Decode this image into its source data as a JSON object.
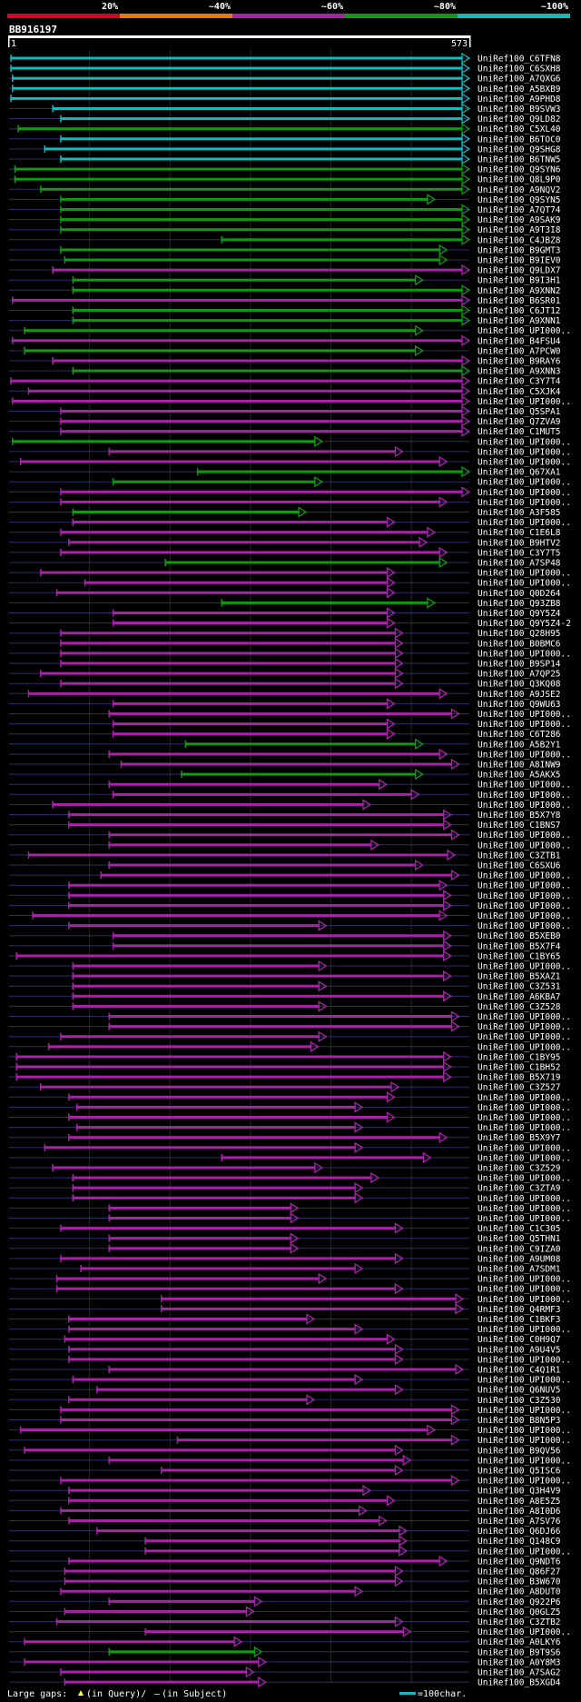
{
  "chart_data": {
    "type": "alignment-map",
    "title": "BB916197",
    "query_start": "1",
    "query_end": "573",
    "query_length": 573,
    "identity_scale": {
      "labels": [
        "20%",
        "~40%",
        "~60%",
        "~80%",
        "~100%"
      ],
      "colors": [
        "#dd0022",
        "#ee7700",
        "#aa22aa",
        "#119911",
        "#11bbbb"
      ]
    },
    "series": [
      {
        "name": "UniRef100_C6TFN8",
        "start": 3,
        "end": 573,
        "band": 4
      },
      {
        "name": "UniRef100_C6SXH8",
        "start": 3,
        "end": 573,
        "band": 4
      },
      {
        "name": "UniRef100_A7QXG6",
        "start": 5,
        "end": 573,
        "band": 4
      },
      {
        "name": "UniRef100_A5BXB9",
        "start": 5,
        "end": 573,
        "band": 4
      },
      {
        "name": "UniRef100_A9PHD8",
        "start": 3,
        "end": 573,
        "band": 4
      },
      {
        "name": "UniRef100_B9SVW3",
        "start": 55,
        "end": 573,
        "band": 4
      },
      {
        "name": "UniRef100_Q9LD82",
        "start": 65,
        "end": 573,
        "band": 4
      },
      {
        "name": "UniRef100_C5XL40",
        "start": 12,
        "end": 573,
        "band": 3
      },
      {
        "name": "UniRef100_B6TOC0",
        "start": 65,
        "end": 573,
        "band": 4
      },
      {
        "name": "UniRef100_Q9SHG8",
        "start": 45,
        "end": 573,
        "band": 4
      },
      {
        "name": "UniRef100_B6TNW5",
        "start": 65,
        "end": 573,
        "band": 4
      },
      {
        "name": "UniRef100_Q9SYN6",
        "start": 8,
        "end": 573,
        "band": 3
      },
      {
        "name": "UniRef100_Q8L9P0",
        "start": 8,
        "end": 573,
        "band": 3
      },
      {
        "name": "UniRef100_A9NQV2",
        "start": 40,
        "end": 573,
        "band": 3
      },
      {
        "name": "UniRef100_Q9SYN5",
        "start": 65,
        "end": 530,
        "band": 3
      },
      {
        "name": "UniRef100_A7QT74",
        "start": 65,
        "end": 573,
        "band": 3
      },
      {
        "name": "UniRef100_A9SAK9",
        "start": 65,
        "end": 573,
        "band": 3
      },
      {
        "name": "UniRef100_A9T3I8",
        "start": 65,
        "end": 573,
        "band": 3
      },
      {
        "name": "UniRef100_C4JBZ8",
        "start": 265,
        "end": 573,
        "band": 3
      },
      {
        "name": "UniRef100_B9GMT3",
        "start": 65,
        "end": 545,
        "band": 3
      },
      {
        "name": "UniRef100_B9IEV0",
        "start": 70,
        "end": 545,
        "band": 3
      },
      {
        "name": "UniRef100_Q9LDX7",
        "start": 55,
        "end": 573,
        "band": 2
      },
      {
        "name": "UniRef100_B9I3H1",
        "start": 80,
        "end": 515,
        "band": 3
      },
      {
        "name": "UniRef100_A9XNN2",
        "start": 80,
        "end": 573,
        "band": 3
      },
      {
        "name": "UniRef100_B6SR01",
        "start": 5,
        "end": 573,
        "band": 2
      },
      {
        "name": "UniRef100_C6JT12",
        "start": 80,
        "end": 573,
        "band": 3
      },
      {
        "name": "UniRef100_A9XNN1",
        "start": 80,
        "end": 573,
        "band": 3
      },
      {
        "name": "UniRef100_UPI000..",
        "start": 20,
        "end": 515,
        "band": 3
      },
      {
        "name": "UniRef100_B4FSU4",
        "start": 5,
        "end": 573,
        "band": 2
      },
      {
        "name": "UniRef100_A7PCW0",
        "start": 20,
        "end": 515,
        "band": 3
      },
      {
        "name": "UniRef100_B9RAY6",
        "start": 55,
        "end": 573,
        "band": 2
      },
      {
        "name": "UniRef100_A9XNN3",
        "start": 80,
        "end": 573,
        "band": 3
      },
      {
        "name": "UniRef100_C3Y7T4",
        "start": 3,
        "end": 573,
        "band": 2
      },
      {
        "name": "UniRef100_C5XJK4",
        "start": 25,
        "end": 573,
        "band": 2
      },
      {
        "name": "UniRef100_UPI000..",
        "start": 5,
        "end": 573,
        "band": 2
      },
      {
        "name": "UniRef100_Q5SPA1",
        "start": 65,
        "end": 573,
        "band": 2
      },
      {
        "name": "UniRef100_Q7ZVA9",
        "start": 65,
        "end": 573,
        "band": 2
      },
      {
        "name": "UniRef100_C1MUT5",
        "start": 65,
        "end": 573,
        "band": 2
      },
      {
        "name": "UniRef100_UPI000..",
        "start": 5,
        "end": 390,
        "band": 3
      },
      {
        "name": "UniRef100_UPI000..",
        "start": 125,
        "end": 490,
        "band": 2
      },
      {
        "name": "UniRef100_UPI000..",
        "start": 15,
        "end": 545,
        "band": 2
      },
      {
        "name": "UniRef100_Q67XA1",
        "start": 235,
        "end": 573,
        "band": 3
      },
      {
        "name": "UniRef100_UPI000..",
        "start": 130,
        "end": 390,
        "band": 3
      },
      {
        "name": "UniRef100_UPI000..",
        "start": 65,
        "end": 573,
        "band": 2
      },
      {
        "name": "UniRef100_UPI000..",
        "start": 65,
        "end": 545,
        "band": 2
      },
      {
        "name": "UniRef100_A3F585",
        "start": 80,
        "end": 370,
        "band": 3
      },
      {
        "name": "UniRef100_UPI000..",
        "start": 80,
        "end": 480,
        "band": 2
      },
      {
        "name": "UniRef100_C1E6L8",
        "start": 65,
        "end": 530,
        "band": 2
      },
      {
        "name": "UniRef100_B9HTV2",
        "start": 75,
        "end": 520,
        "band": 2
      },
      {
        "name": "UniRef100_C3Y7T5",
        "start": 65,
        "end": 545,
        "band": 2
      },
      {
        "name": "UniRef100_A7SP48",
        "start": 195,
        "end": 545,
        "band": 3
      },
      {
        "name": "UniRef100_UPI000..",
        "start": 40,
        "end": 480,
        "band": 2
      },
      {
        "name": "UniRef100_UPI000..",
        "start": 95,
        "end": 480,
        "band": 2
      },
      {
        "name": "UniRef100_Q0D264",
        "start": 60,
        "end": 480,
        "band": 2
      },
      {
        "name": "UniRef100_Q93ZB8",
        "start": 265,
        "end": 530,
        "band": 3
      },
      {
        "name": "UniRef100_Q9Y5Z4",
        "start": 130,
        "end": 480,
        "band": 2
      },
      {
        "name": "UniRef100_Q9Y5Z4-2",
        "start": 130,
        "end": 480,
        "band": 2
      },
      {
        "name": "UniRef100_Q28H95",
        "start": 65,
        "end": 490,
        "band": 2
      },
      {
        "name": "UniRef100_B0BMC6",
        "start": 65,
        "end": 490,
        "band": 2
      },
      {
        "name": "UniRef100_UPI000..",
        "start": 65,
        "end": 490,
        "band": 2
      },
      {
        "name": "UniRef100_B9SP14",
        "start": 65,
        "end": 490,
        "band": 2
      },
      {
        "name": "UniRef100_A7QP25",
        "start": 40,
        "end": 490,
        "band": 2
      },
      {
        "name": "UniRef100_Q3KQ08",
        "start": 65,
        "end": 490,
        "band": 2
      },
      {
        "name": "UniRef100_A9JSE2",
        "start": 25,
        "end": 545,
        "band": 2
      },
      {
        "name": "UniRef100_Q9WU63",
        "start": 130,
        "end": 480,
        "band": 2
      },
      {
        "name": "UniRef100_UPI000..",
        "start": 125,
        "end": 560,
        "band": 2
      },
      {
        "name": "UniRef100_UPI000..",
        "start": 130,
        "end": 480,
        "band": 2
      },
      {
        "name": "UniRef100_C6T286",
        "start": 130,
        "end": 480,
        "band": 2
      },
      {
        "name": "UniRef100_A5B2Y1",
        "start": 220,
        "end": 515,
        "band": 3
      },
      {
        "name": "UniRef100_UPI000..",
        "start": 125,
        "end": 545,
        "band": 2
      },
      {
        "name": "UniRef100_A8INW9",
        "start": 140,
        "end": 560,
        "band": 2
      },
      {
        "name": "UniRef100_A5AKX5",
        "start": 215,
        "end": 515,
        "band": 3
      },
      {
        "name": "UniRef100_UPI000..",
        "start": 125,
        "end": 470,
        "band": 2
      },
      {
        "name": "UniRef100_UPI000..",
        "start": 130,
        "end": 510,
        "band": 2
      },
      {
        "name": "UniRef100_UPI000..",
        "start": 55,
        "end": 450,
        "band": 2
      },
      {
        "name": "UniRef100_B5X7Y8",
        "start": 75,
        "end": 550,
        "band": 2
      },
      {
        "name": "UniRef100_C1BNS7",
        "start": 75,
        "end": 550,
        "band": 2
      },
      {
        "name": "UniRef100_UPI000..",
        "start": 125,
        "end": 560,
        "band": 2
      },
      {
        "name": "UniRef100_UPI000..",
        "start": 125,
        "end": 460,
        "band": 2
      },
      {
        "name": "UniRef100_C3ZTB1",
        "start": 25,
        "end": 555,
        "band": 2
      },
      {
        "name": "UniRef100_C6SXU6",
        "start": 125,
        "end": 515,
        "band": 2
      },
      {
        "name": "UniRef100_UPI000..",
        "start": 115,
        "end": 560,
        "band": 2
      },
      {
        "name": "UniRef100_UPI000..",
        "start": 75,
        "end": 545,
        "band": 2
      },
      {
        "name": "UniRef100_UPI000..",
        "start": 75,
        "end": 550,
        "band": 2
      },
      {
        "name": "UniRef100_UPI000..",
        "start": 75,
        "end": 550,
        "band": 2
      },
      {
        "name": "UniRef100_UPI000..",
        "start": 30,
        "end": 545,
        "band": 2
      },
      {
        "name": "UniRef100_UPI000..",
        "start": 75,
        "end": 395,
        "band": 2
      },
      {
        "name": "UniRef100_B5XEB0",
        "start": 130,
        "end": 550,
        "band": 2
      },
      {
        "name": "UniRef100_B5X7F4",
        "start": 130,
        "end": 550,
        "band": 2
      },
      {
        "name": "UniRef100_C1BY65",
        "start": 10,
        "end": 550,
        "band": 2
      },
      {
        "name": "UniRef100_UPI000..",
        "start": 80,
        "end": 395,
        "band": 2
      },
      {
        "name": "UniRef100_B5XAZ1",
        "start": 80,
        "end": 550,
        "band": 2
      },
      {
        "name": "UniRef100_C3Z531",
        "start": 80,
        "end": 395,
        "band": 2
      },
      {
        "name": "UniRef100_A6KBA7",
        "start": 80,
        "end": 550,
        "band": 2
      },
      {
        "name": "UniRef100_C3Z528",
        "start": 80,
        "end": 395,
        "band": 2
      },
      {
        "name": "UniRef100_UPI000..",
        "start": 125,
        "end": 560,
        "band": 2
      },
      {
        "name": "UniRef100_UPI000..",
        "start": 125,
        "end": 560,
        "band": 2
      },
      {
        "name": "UniRef100_UPI000..",
        "start": 65,
        "end": 395,
        "band": 2
      },
      {
        "name": "UniRef100_UPI000..",
        "start": 50,
        "end": 385,
        "band": 2
      },
      {
        "name": "UniRef100_C1BY95",
        "start": 10,
        "end": 550,
        "band": 2
      },
      {
        "name": "UniRef100_C1BH52",
        "start": 10,
        "end": 550,
        "band": 2
      },
      {
        "name": "UniRef100_B5X719",
        "start": 10,
        "end": 550,
        "band": 2
      },
      {
        "name": "UniRef100_C3Z527",
        "start": 40,
        "end": 485,
        "band": 2
      },
      {
        "name": "UniRef100_UPI000..",
        "start": 75,
        "end": 480,
        "band": 2
      },
      {
        "name": "UniRef100_UPI000..",
        "start": 85,
        "end": 440,
        "band": 2
      },
      {
        "name": "UniRef100_UPI000..",
        "start": 75,
        "end": 480,
        "band": 2
      },
      {
        "name": "UniRef100_UPI000..",
        "start": 85,
        "end": 440,
        "band": 2
      },
      {
        "name": "UniRef100_B5X9Y7",
        "start": 75,
        "end": 545,
        "band": 2
      },
      {
        "name": "UniRef100_UPI000..",
        "start": 45,
        "end": 440,
        "band": 2
      },
      {
        "name": "UniRef100_UPI000..",
        "start": 265,
        "end": 525,
        "band": 2
      },
      {
        "name": "UniRef100_C3Z529",
        "start": 55,
        "end": 390,
        "band": 2
      },
      {
        "name": "UniRef100_UPI000..",
        "start": 80,
        "end": 460,
        "band": 2
      },
      {
        "name": "UniRef100_C3ZTA9",
        "start": 80,
        "end": 440,
        "band": 2
      },
      {
        "name": "UniRef100_UPI000..",
        "start": 80,
        "end": 440,
        "band": 2
      },
      {
        "name": "UniRef100_UPI000..",
        "start": 125,
        "end": 360,
        "band": 2
      },
      {
        "name": "UniRef100_UPI000..",
        "start": 125,
        "end": 360,
        "band": 2
      },
      {
        "name": "UniRef100_C1C305",
        "start": 65,
        "end": 490,
        "band": 2
      },
      {
        "name": "UniRef100_Q5THN1",
        "start": 125,
        "end": 360,
        "band": 2
      },
      {
        "name": "UniRef100_C9IZA0",
        "start": 125,
        "end": 360,
        "band": 2
      },
      {
        "name": "UniRef100_A9UM08",
        "start": 65,
        "end": 490,
        "band": 2
      },
      {
        "name": "UniRef100_A7SDM1",
        "start": 90,
        "end": 440,
        "band": 2
      },
      {
        "name": "UniRef100_UPI000..",
        "start": 60,
        "end": 395,
        "band": 2
      },
      {
        "name": "UniRef100_UPI000..",
        "start": 60,
        "end": 490,
        "band": 2
      },
      {
        "name": "UniRef100_UPI000..",
        "start": 190,
        "end": 565,
        "band": 2
      },
      {
        "name": "UniRef100_Q4RMF3",
        "start": 190,
        "end": 565,
        "band": 2
      },
      {
        "name": "UniRef100_C1BKF3",
        "start": 75,
        "end": 380,
        "band": 2
      },
      {
        "name": "UniRef100_UPI000..",
        "start": 75,
        "end": 440,
        "band": 2
      },
      {
        "name": "UniRef100_C0H9Q7",
        "start": 70,
        "end": 480,
        "band": 2
      },
      {
        "name": "UniRef100_A9U4V5",
        "start": 75,
        "end": 490,
        "band": 2
      },
      {
        "name": "UniRef100_UPI000..",
        "start": 75,
        "end": 490,
        "band": 2
      },
      {
        "name": "UniRef100_C4Q1R1",
        "start": 125,
        "end": 565,
        "band": 2
      },
      {
        "name": "UniRef100_UPI000..",
        "start": 80,
        "end": 440,
        "band": 2
      },
      {
        "name": "UniRef100_Q6NUV5",
        "start": 110,
        "end": 490,
        "band": 2
      },
      {
        "name": "UniRef100_C3Z530",
        "start": 75,
        "end": 380,
        "band": 2
      },
      {
        "name": "UniRef100_UPI000..",
        "start": 65,
        "end": 560,
        "band": 2
      },
      {
        "name": "UniRef100_B8N5P3",
        "start": 65,
        "end": 560,
        "band": 2
      },
      {
        "name": "UniRef100_UPI000..",
        "start": 15,
        "end": 530,
        "band": 2
      },
      {
        "name": "UniRef100_UPI000..",
        "start": 210,
        "end": 560,
        "band": 2
      },
      {
        "name": "UniRef100_B9QV56",
        "start": 20,
        "end": 490,
        "band": 2
      },
      {
        "name": "UniRef100_UPI000..",
        "start": 125,
        "end": 500,
        "band": 2
      },
      {
        "name": "UniRef100_Q5ISC6",
        "start": 190,
        "end": 490,
        "band": 2
      },
      {
        "name": "UniRef100_UPI000..",
        "start": 65,
        "end": 560,
        "band": 2
      },
      {
        "name": "UniRef100_Q3H4V9",
        "start": 75,
        "end": 450,
        "band": 2
      },
      {
        "name": "UniRef100_A8E5Z5",
        "start": 75,
        "end": 480,
        "band": 2
      },
      {
        "name": "UniRef100_A8I0D6",
        "start": 65,
        "end": 445,
        "band": 2
      },
      {
        "name": "UniRef100_A7SV76",
        "start": 75,
        "end": 470,
        "band": 2
      },
      {
        "name": "UniRef100_Q6DJ66",
        "start": 110,
        "end": 495,
        "band": 2
      },
      {
        "name": "UniRef100_Q148C9",
        "start": 170,
        "end": 495,
        "band": 2
      },
      {
        "name": "UniRef100_UPI000..",
        "start": 170,
        "end": 495,
        "band": 2
      },
      {
        "name": "UniRef100_Q9NDT6",
        "start": 75,
        "end": 545,
        "band": 2
      },
      {
        "name": "UniRef100_Q86F27",
        "start": 70,
        "end": 490,
        "band": 2
      },
      {
        "name": "UniRef100_B3W670",
        "start": 70,
        "end": 490,
        "band": 2
      },
      {
        "name": "UniRef100_A8DUT0",
        "start": 65,
        "end": 440,
        "band": 2
      },
      {
        "name": "UniRef100_Q922P6",
        "start": 125,
        "end": 315,
        "band": 2
      },
      {
        "name": "UniRef100_Q0GLZ5",
        "start": 70,
        "end": 305,
        "band": 2
      },
      {
        "name": "UniRef100_C3ZTB2",
        "start": 60,
        "end": 490,
        "band": 2
      },
      {
        "name": "UniRef100_UPI000..",
        "start": 170,
        "end": 500,
        "band": 2
      },
      {
        "name": "UniRef100_A0LKY6",
        "start": 20,
        "end": 290,
        "band": 2
      },
      {
        "name": "UniRef100_B9T9S6",
        "start": 125,
        "end": 315,
        "band": 3
      },
      {
        "name": "UniRef100_A0Y8M3",
        "start": 20,
        "end": 320,
        "band": 2
      },
      {
        "name": "UniRef100_A7SAG2",
        "start": 65,
        "end": 305,
        "band": 2
      },
      {
        "name": "UniRef100_B5XGD4",
        "start": 70,
        "end": 320,
        "band": 2
      }
    ],
    "legend": {
      "large_gaps": "Large gaps:",
      "in_query_label": "(in Query)/",
      "in_subject_label": "(in Subject)",
      "gap_symbol": "–",
      "scale_label": "=100char.",
      "scale_length": 100
    }
  }
}
